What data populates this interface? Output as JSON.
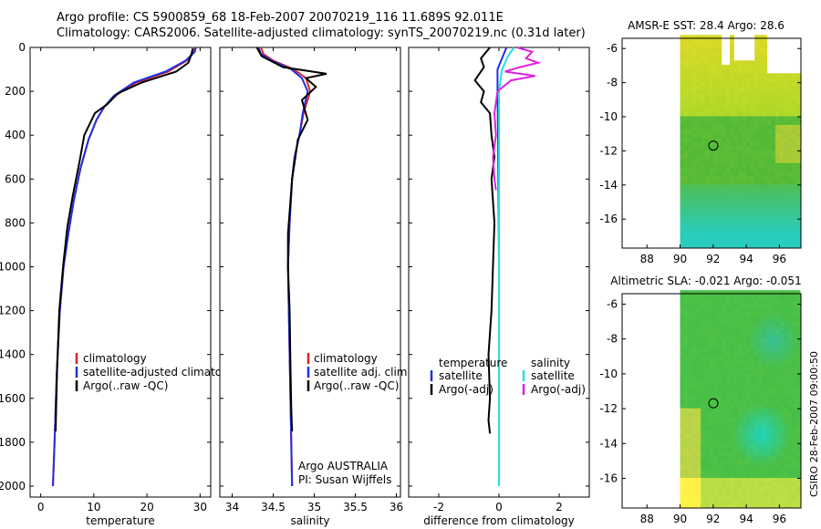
{
  "title_line1": "Argo profile: CS 5900859_68 18-Feb-2007 20070219_116 11.689S 92.011E",
  "title_line2": "Climatology: CARS2006. Satellite-adjusted climatology: synTS_20070219.nc (0.31d later)",
  "footer_credit": "CSIRO 28-Feb-2007 09:00:50",
  "colors": {
    "climatology": "#e02020",
    "satellite": "#1f2fe0",
    "argo": "#000000",
    "satellite_sal_diff": "#20e0e8",
    "argo_sal_diff": "#e020e0"
  },
  "chart_data": [
    {
      "type": "line",
      "id": "temperature",
      "xlabel": "temperature",
      "ylabel": "",
      "xlim": [
        -2,
        32
      ],
      "ylim": [
        2050,
        0
      ],
      "xticks": [
        0,
        10,
        20,
        30
      ],
      "xtick_labels": [
        "0",
        "10",
        "20",
        "30"
      ],
      "yticks": [
        0,
        200,
        400,
        600,
        800,
        1000,
        1200,
        1400,
        1600,
        1800,
        2000
      ],
      "ytick_labels": [
        "0",
        "200",
        "400",
        "600",
        "800",
        "1000",
        "1200",
        "1400",
        "1600",
        "1800",
        "2000"
      ],
      "legend": [
        "climatology",
        "satellite-adjusted climatology",
        "Argo(..raw -QC)"
      ],
      "series": [
        {
          "name": "climatology",
          "color": "#e02020",
          "x": [
            29,
            28.8,
            27.5,
            24,
            18,
            14,
            12,
            10.5,
            9,
            7.5,
            6.2,
            5.2,
            4.3,
            3.6,
            3,
            2.6,
            2.3
          ],
          "y": [
            0,
            20,
            60,
            110,
            160,
            220,
            270,
            330,
            420,
            550,
            700,
            850,
            1000,
            1200,
            1500,
            1800,
            2000
          ]
        },
        {
          "name": "satellite-adjusted climatology",
          "color": "#1f2fe0",
          "x": [
            29.2,
            29,
            27.3,
            23.5,
            17.5,
            13.8,
            12,
            10.5,
            9,
            7.5,
            6.2,
            5.2,
            4.3,
            3.6,
            3,
            2.6,
            2.3
          ],
          "y": [
            0,
            20,
            60,
            110,
            160,
            220,
            270,
            330,
            420,
            550,
            700,
            850,
            1000,
            1200,
            1500,
            1800,
            2000
          ]
        },
        {
          "name": "Argo(..raw -QC)",
          "color": "#000000",
          "x": [
            28.6,
            28.4,
            27.8,
            25.5,
            19,
            14.5,
            12.5,
            10.2,
            8.2,
            7.3,
            6,
            5,
            4.2,
            3.5,
            3.1,
            2.9,
            2.8
          ],
          "y": [
            5,
            30,
            70,
            110,
            160,
            210,
            260,
            300,
            400,
            520,
            680,
            820,
            1000,
            1200,
            1450,
            1650,
            1750
          ]
        }
      ]
    },
    {
      "type": "line",
      "id": "salinity",
      "xlabel": "salinity",
      "xlim": [
        33.85,
        36.05
      ],
      "ylim": [
        2050,
        0
      ],
      "xticks": [
        34,
        34.5,
        35,
        35.5,
        36
      ],
      "xtick_labels": [
        "34",
        "34.5",
        "35",
        "35.5",
        "36"
      ],
      "legend": [
        "climatology",
        "satellite adj. clim.",
        "Argo(..raw -QC)"
      ],
      "annotations": [
        "Argo AUSTRALIA",
        "PI: Susan Wijffels"
      ],
      "series": [
        {
          "name": "climatology",
          "color": "#e02020",
          "x": [
            34.35,
            34.38,
            34.5,
            34.75,
            34.9,
            34.95,
            34.87,
            34.82,
            34.76,
            34.73,
            34.7,
            34.68,
            34.69,
            34.7,
            34.71,
            34.72,
            34.73
          ],
          "y": [
            0,
            30,
            60,
            100,
            140,
            200,
            300,
            400,
            500,
            600,
            800,
            1000,
            1200,
            1400,
            1600,
            1800,
            2000
          ]
        },
        {
          "name": "satellite adj. clim.",
          "color": "#1f2fe0",
          "x": [
            34.32,
            34.35,
            34.48,
            34.72,
            34.85,
            34.92,
            34.86,
            34.82,
            34.76,
            34.73,
            34.7,
            34.68,
            34.69,
            34.7,
            34.71,
            34.72,
            34.73
          ],
          "y": [
            0,
            30,
            60,
            100,
            140,
            200,
            300,
            400,
            500,
            600,
            800,
            1000,
            1200,
            1400,
            1600,
            1800,
            2000
          ]
        },
        {
          "name": "Argo(..raw -QC)",
          "color": "#000000",
          "x": [
            34.3,
            34.36,
            34.62,
            35.15,
            34.9,
            35.02,
            34.85,
            34.92,
            34.8,
            34.77,
            34.73,
            34.71,
            34.68,
            34.68,
            34.7,
            34.71,
            34.72,
            34.73
          ],
          "y": [
            0,
            40,
            90,
            120,
            140,
            180,
            240,
            330,
            420,
            500,
            600,
            700,
            850,
            1000,
            1200,
            1450,
            1650,
            1750
          ]
        }
      ]
    },
    {
      "type": "line",
      "id": "difference",
      "xlabel": "difference from climatology",
      "xlim": [
        -3,
        3
      ],
      "ylim": [
        2050,
        0
      ],
      "xticks": [
        -2,
        0,
        2
      ],
      "xtick_labels": [
        "-2",
        "0",
        "2"
      ],
      "legend_left_title": "temperature",
      "legend_left": [
        "satellite",
        "Argo(-adj)"
      ],
      "legend_right_title": "salinity",
      "legend_right": [
        "satellite",
        "Argo(-adj)"
      ],
      "series": [
        {
          "name": "temperature satellite",
          "color": "#1f2fe0",
          "x": [
            0.25,
            0.1,
            -0.05,
            -0.05,
            -0.03,
            -0.02,
            -0.01,
            0,
            0,
            0,
            0
          ],
          "y": [
            0,
            50,
            100,
            200,
            400,
            600,
            800,
            1000,
            1400,
            1800,
            2000
          ]
        },
        {
          "name": "temperature Argo(-adj)",
          "color": "#000000",
          "x": [
            -0.3,
            -0.6,
            -0.5,
            -0.8,
            -0.5,
            -0.6,
            -0.3,
            -0.25,
            -0.15,
            -0.25,
            -0.15,
            -0.2,
            -0.25,
            -0.35,
            -0.3,
            -0.35,
            -0.3
          ],
          "y": [
            0,
            50,
            90,
            150,
            200,
            250,
            300,
            400,
            500,
            600,
            800,
            1000,
            1200,
            1400,
            1600,
            1700,
            1760
          ]
        },
        {
          "name": "salinity satellite",
          "color": "#20e0e8",
          "x": [
            0.5,
            0.3,
            0.1,
            0,
            0,
            0,
            0,
            0
          ],
          "y": [
            0,
            40,
            100,
            200,
            600,
            1000,
            1600,
            2000
          ]
        },
        {
          "name": "salinity Argo(-adj)",
          "color": "#e020e0",
          "x": [
            0.6,
            1.1,
            0.9,
            1.3,
            0.7,
            0.2,
            1.2,
            0.4,
            -0.05,
            -0.15,
            -0.1,
            -0.2,
            -0.15,
            -0.1
          ],
          "y": [
            0,
            20,
            50,
            70,
            90,
            110,
            130,
            150,
            200,
            300,
            400,
            500,
            600,
            650
          ]
        }
      ]
    },
    {
      "type": "heatmap",
      "id": "sst-map",
      "title": "AMSR-E SST: 28.4 Argo: 28.6",
      "xlim": [
        86.5,
        97.3
      ],
      "ylim": [
        -17.7,
        -5.4
      ],
      "xticks": [
        88,
        90,
        92,
        94,
        96
      ],
      "xtick_labels": [
        "88",
        "90",
        "92",
        "94",
        "96"
      ],
      "yticks": [
        -6,
        -8,
        -10,
        -12,
        -14,
        -16
      ],
      "ytick_labels": [
        "-6",
        "-8",
        "-10",
        "-12",
        "-14",
        "-16"
      ],
      "data_xlim": [
        90,
        97.2
      ],
      "marker": {
        "lon": 92.011,
        "lat": -11.689
      }
    },
    {
      "type": "heatmap",
      "id": "sla-map",
      "title": "Altimetric SLA: -0.021 Argo: -0.051",
      "xlim": [
        86.5,
        97.3
      ],
      "ylim": [
        -17.7,
        -5.4
      ],
      "xticks": [
        88,
        90,
        92,
        94,
        96
      ],
      "xtick_labels": [
        "88",
        "90",
        "92",
        "94",
        "96"
      ],
      "yticks": [
        -6,
        -8,
        -10,
        -12,
        -14,
        -16
      ],
      "ytick_labels": [
        "-6",
        "-8",
        "-10",
        "-12",
        "-14",
        "-16"
      ],
      "data_xlim": [
        90,
        97.2
      ],
      "marker": {
        "lon": 92.011,
        "lat": -11.689
      }
    }
  ]
}
